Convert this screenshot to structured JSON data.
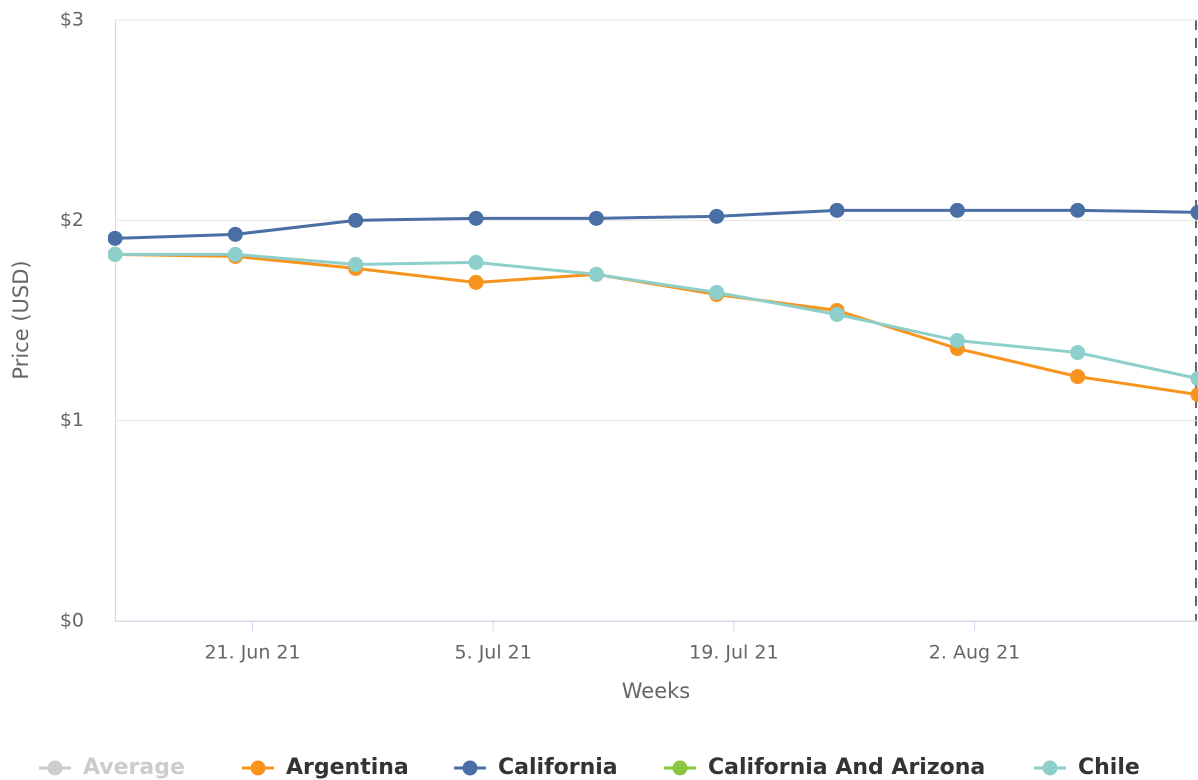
{
  "chart_data": {
    "type": "line",
    "y_axis_label": "Price (USD)",
    "x_axis_label": "Weeks",
    "x": [
      "2021-06-13",
      "2021-06-20",
      "2021-06-27",
      "2021-07-04",
      "2021-07-11",
      "2021-07-18",
      "2021-07-25",
      "2021-08-01",
      "2021-08-08",
      "2021-08-15"
    ],
    "xlim": [
      "2021-06-13",
      "2021-08-15"
    ],
    "xticks": [
      {
        "value": "2021-06-21",
        "label": "21. Jun 21"
      },
      {
        "value": "2021-07-05",
        "label": "5. Jul 21"
      },
      {
        "value": "2021-07-19",
        "label": "19. Jul 21"
      },
      {
        "value": "2021-08-02",
        "label": "2. Aug 21"
      }
    ],
    "ylim": [
      0,
      3
    ],
    "yticks": [
      {
        "value": 0,
        "label": "$0"
      },
      {
        "value": 1,
        "label": "$1"
      },
      {
        "value": 2,
        "label": "$2"
      },
      {
        "value": 3,
        "label": "$3"
      }
    ],
    "grid": true,
    "legend": "bottom",
    "series": [
      {
        "name": "Average",
        "color": "#cccccc",
        "visible": false,
        "values": [
          null,
          null,
          null,
          null,
          null,
          null,
          null,
          null,
          null,
          null
        ]
      },
      {
        "name": "Argentina",
        "color": "#f7941d",
        "values": [
          1.83,
          1.82,
          1.76,
          1.69,
          1.73,
          1.63,
          1.55,
          1.36,
          1.22,
          1.13
        ]
      },
      {
        "name": "California",
        "color": "#4a6fa5",
        "values": [
          1.91,
          1.93,
          2.0,
          2.01,
          2.01,
          2.02,
          2.05,
          2.05,
          2.05,
          2.04
        ]
      },
      {
        "name": "California And Arizona",
        "color": "#8cc63f",
        "values": [
          null,
          null,
          null,
          null,
          null,
          null,
          null,
          null,
          null,
          null
        ]
      },
      {
        "name": "Chile",
        "color": "#8ccfcb",
        "values": [
          1.83,
          1.83,
          1.78,
          1.79,
          1.73,
          1.64,
          1.53,
          1.4,
          1.34,
          1.21
        ]
      }
    ]
  }
}
